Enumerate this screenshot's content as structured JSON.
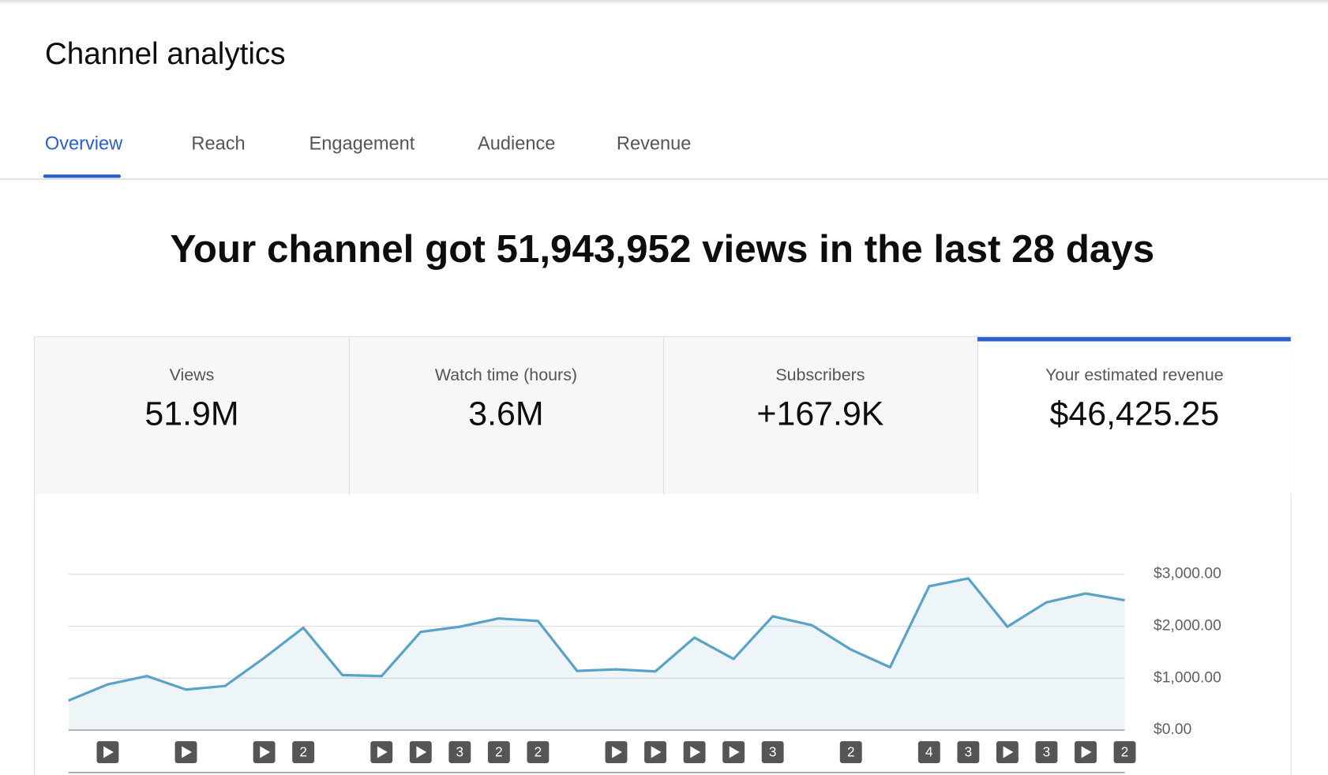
{
  "header": {
    "title": "Channel analytics"
  },
  "tabs": [
    "Overview",
    "Reach",
    "Engagement",
    "Audience",
    "Revenue"
  ],
  "selected_tab": 0,
  "headline": "Your channel got 51,943,952 views in the last 28 days",
  "metrics": [
    {
      "label": "Views",
      "value": "51.9M"
    },
    {
      "label": "Watch time (hours)",
      "value": "3.6M"
    },
    {
      "label": "Subscribers",
      "value": "+167.9K"
    },
    {
      "label": "Your estimated revenue",
      "value": "$46,425.25"
    }
  ],
  "selected_metric": 3,
  "chart_data": {
    "type": "line",
    "categories": [
      null,
      null,
      null,
      null,
      null,
      null,
      null,
      null,
      null,
      null,
      null,
      null,
      null,
      null,
      null,
      null,
      null,
      null,
      null,
      null,
      null,
      null,
      null,
      null,
      null,
      null,
      null,
      null
    ],
    "values": [
      570,
      880,
      1040,
      780,
      850,
      1390,
      1970,
      1060,
      1040,
      1890,
      1990,
      2150,
      2100,
      1140,
      1170,
      1130,
      1780,
      1370,
      2190,
      2020,
      1550,
      1210,
      2770,
      2920,
      1990,
      2460,
      2630,
      2500
    ],
    "color": "#5aa3c8",
    "ylim": [
      0,
      3000
    ],
    "yticks": [
      {
        "value": 0,
        "label": "$0.00"
      },
      {
        "value": 1000,
        "label": "$1,000.00"
      },
      {
        "value": 2000,
        "label": "$2,000.00"
      },
      {
        "value": 3000,
        "label": "$3,000.00"
      }
    ],
    "grid": true,
    "video_counts": [
      null,
      1,
      null,
      1,
      null,
      1,
      2,
      null,
      1,
      1,
      3,
      2,
      2,
      null,
      1,
      1,
      1,
      1,
      3,
      null,
      2,
      null,
      4,
      3,
      1,
      3,
      1,
      2
    ]
  }
}
